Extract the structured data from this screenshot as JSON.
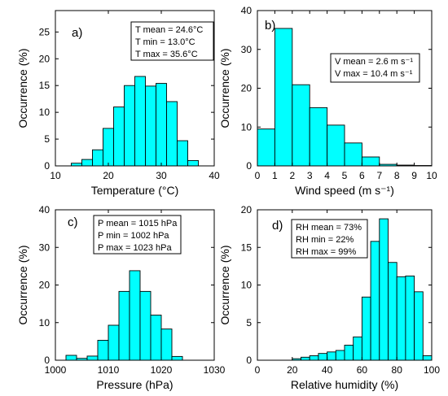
{
  "chart_data": [
    {
      "type": "bar",
      "panel_label": "a)",
      "xlabel": "Temperature (°C)",
      "ylabel": "Occurrence (%)",
      "xlim": [
        10,
        40
      ],
      "ylim": [
        0,
        29
      ],
      "xticks": [
        10,
        20,
        30,
        40
      ],
      "yticks": [
        0,
        5,
        10,
        15,
        20,
        25
      ],
      "bin_edges": [
        13,
        15,
        17,
        19,
        21,
        23,
        25,
        27,
        29,
        31,
        33,
        35,
        37
      ],
      "values": [
        0.5,
        1.2,
        3.0,
        7.0,
        11.0,
        15.0,
        16.7,
        14.9,
        15.4,
        12.0,
        4.7,
        1.0
      ],
      "stats": [
        "T mean = 24.6°C",
        "T min = 13.0°C",
        "T max = 35.6°C"
      ],
      "grid": false
    },
    {
      "type": "bar",
      "panel_label": "b)",
      "xlabel": "Wind speed (m s⁻¹)",
      "ylabel": "Occurrence (%)",
      "xlim": [
        0,
        10
      ],
      "ylim": [
        0,
        40
      ],
      "xticks": [
        0,
        1,
        2,
        3,
        4,
        5,
        6,
        7,
        8,
        9,
        10
      ],
      "yticks": [
        0,
        10,
        20,
        30,
        40
      ],
      "bin_edges": [
        0,
        1,
        2,
        3,
        4,
        5,
        6,
        7,
        8,
        9,
        10
      ],
      "values": [
        9.5,
        35.4,
        20.9,
        15.0,
        10.5,
        5.9,
        2.3,
        0.4,
        0.2,
        0.1
      ],
      "stats": [
        "V mean = 2.6 m s⁻¹",
        "V max = 10.4 m s⁻¹"
      ],
      "grid": false
    },
    {
      "type": "bar",
      "panel_label": "c)",
      "xlabel": "Pressure (hPa)",
      "ylabel": "Occurrence (%)",
      "xlim": [
        1000,
        1030
      ],
      "ylim": [
        0,
        40
      ],
      "xticks": [
        1000,
        1010,
        1020,
        1030
      ],
      "yticks": [
        0,
        10,
        20,
        30,
        40
      ],
      "bin_edges": [
        1002,
        1004,
        1006,
        1008,
        1010,
        1012,
        1014,
        1016,
        1018,
        1020,
        1022,
        1024
      ],
      "values": [
        1.3,
        0.5,
        1.1,
        5.3,
        9.3,
        18.3,
        23.8,
        18.3,
        12.0,
        8.3,
        1.0
      ],
      "stats": [
        "P mean = 1015 hPa",
        "P min = 1002 hPa",
        "P max = 1023 hPa"
      ],
      "grid": false
    },
    {
      "type": "bar",
      "panel_label": "d)",
      "xlabel": "Relative humidity (%)",
      "ylabel": "Occurrence (%)",
      "xlim": [
        0,
        100
      ],
      "ylim": [
        0,
        20
      ],
      "xticks": [
        0,
        20,
        40,
        60,
        80,
        100
      ],
      "yticks": [
        0,
        5,
        10,
        15,
        20
      ],
      "bin_edges": [
        20,
        25,
        30,
        35,
        40,
        45,
        50,
        55,
        60,
        65,
        70,
        75,
        80,
        85,
        90,
        95,
        100
      ],
      "values": [
        0.2,
        0.4,
        0.6,
        0.9,
        1.1,
        1.3,
        2.0,
        3.1,
        8.4,
        15.8,
        18.8,
        13.0,
        11.1,
        11.2,
        9.1,
        0.6
      ],
      "stats": [
        "RH mean = 73%",
        "RH min = 22%",
        "RH max = 99%"
      ],
      "grid": false
    }
  ]
}
